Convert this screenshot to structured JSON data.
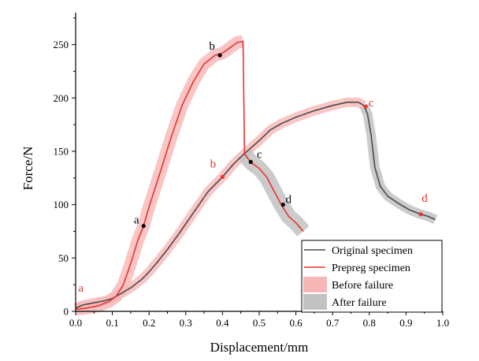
{
  "chart_data": {
    "type": "line",
    "xlabel": "Displacement/mm",
    "ylabel": "Force/N",
    "xlim": [
      0.0,
      1.0
    ],
    "ylim": [
      0,
      280
    ],
    "xticks": [
      0.0,
      0.1,
      0.2,
      0.3,
      0.4,
      0.5,
      0.6,
      0.7,
      0.8,
      0.9,
      1.0
    ],
    "xtick_labels": [
      "0.0",
      "0.1",
      "0.2",
      "0.3",
      "0.4",
      "0.5",
      "0.6",
      "0.7",
      "0.8",
      "0.9",
      "1.0"
    ],
    "yticks": [
      0,
      50,
      100,
      150,
      200,
      250
    ],
    "ytick_labels": [
      "0",
      "50",
      "100",
      "150",
      "200",
      "250"
    ],
    "grid": false,
    "legend_position": "bottom-right",
    "legend": [
      {
        "label": "Original specimen",
        "kind": "line",
        "color": "#4a4a4a"
      },
      {
        "label": "Prepreg specimen",
        "kind": "line",
        "color": "#e8332f"
      },
      {
        "label": "Before failure",
        "kind": "band",
        "color": "#f7b7b7"
      },
      {
        "label": "After failure",
        "kind": "band",
        "color": "#c2c2c2"
      }
    ],
    "series": [
      {
        "name": "Original specimen",
        "color": "#4a4a4a",
        "x": [
          0.0,
          0.02,
          0.05,
          0.08,
          0.1,
          0.12,
          0.15,
          0.18,
          0.2,
          0.22,
          0.25,
          0.28,
          0.3,
          0.33,
          0.36,
          0.4,
          0.43,
          0.46,
          0.5,
          0.53,
          0.56,
          0.6,
          0.65,
          0.7,
          0.74,
          0.77,
          0.785,
          0.795,
          0.805,
          0.815,
          0.83,
          0.85,
          0.88,
          0.91,
          0.94,
          0.96,
          0.98
        ],
        "y": [
          3,
          6,
          8,
          10,
          12,
          16,
          22,
          30,
          37,
          45,
          58,
          72,
          82,
          97,
          112,
          126,
          138,
          148,
          160,
          170,
          176,
          182,
          188,
          193,
          196,
          196,
          193,
          185,
          165,
          135,
          117,
          108,
          101,
          95,
          91,
          89,
          86
        ],
        "band_before": {
          "x_max": 0.785,
          "width": 6,
          "color": "#f7b7b7"
        },
        "band_after": {
          "x_min": 0.785,
          "width": 6,
          "color": "#c2c2c2"
        },
        "points": [
          {
            "label": "a",
            "x": 0.01,
            "y": 3
          },
          {
            "label": "b",
            "x": 0.4,
            "y": 126
          },
          {
            "label": "c",
            "x": 0.79,
            "y": 192
          },
          {
            "label": "d",
            "x": 0.94,
            "y": 91
          }
        ]
      },
      {
        "name": "Prepreg specimen",
        "color": "#e8332f",
        "x": [
          0.0,
          0.03,
          0.06,
          0.09,
          0.11,
          0.13,
          0.15,
          0.17,
          0.185,
          0.2,
          0.23,
          0.26,
          0.29,
          0.32,
          0.35,
          0.38,
          0.4,
          0.42,
          0.44,
          0.456,
          0.46,
          0.47,
          0.48,
          0.5,
          0.52,
          0.54,
          0.56,
          0.58,
          0.6,
          0.62
        ],
        "y": [
          2,
          3,
          5,
          9,
          14,
          25,
          45,
          67,
          80,
          98,
          130,
          163,
          193,
          215,
          232,
          240,
          242,
          247,
          252,
          253,
          148,
          143,
          139,
          134,
          126,
          113,
          100,
          89,
          83,
          75
        ],
        "band_before": {
          "x_max": 0.456,
          "width": 8,
          "color": "#f7b7b7"
        },
        "band_after": {
          "x_min": 0.46,
          "width": 10,
          "color": "#c2c2c2"
        },
        "points": [
          {
            "label": "a",
            "x": 0.185,
            "y": 80
          },
          {
            "label": "b",
            "x": 0.393,
            "y": 240
          },
          {
            "label": "c",
            "x": 0.477,
            "y": 140
          },
          {
            "label": "d",
            "x": 0.565,
            "y": 100
          }
        ]
      }
    ]
  }
}
